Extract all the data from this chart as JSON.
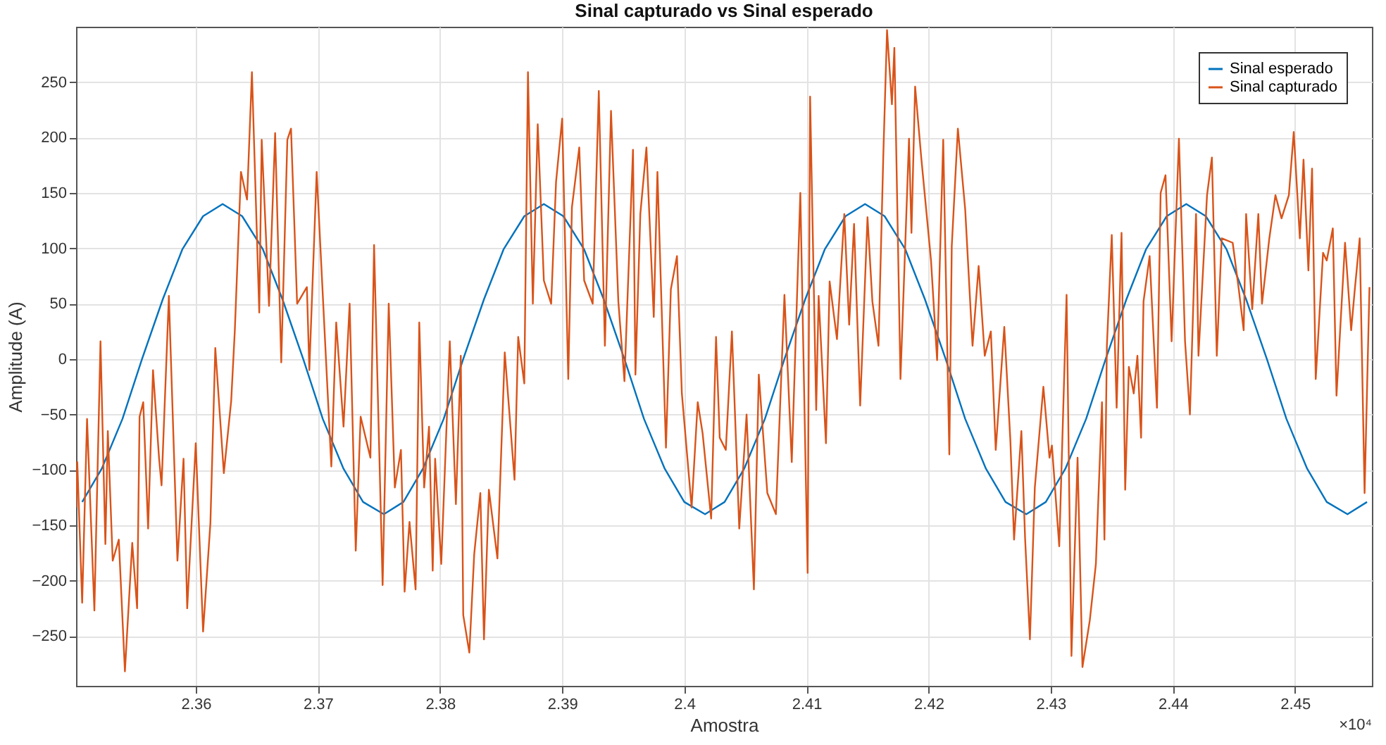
{
  "chart_data": {
    "type": "line",
    "title": "Sinal capturado vs Sinal esperado",
    "xlabel": "Amostra",
    "ylabel": "Amplitude (A)",
    "xlim": [
      2.3502,
      2.4563
    ],
    "ylim": [
      -295,
      300
    ],
    "xticks": [
      2.36,
      2.37,
      2.38,
      2.39,
      2.4,
      2.41,
      2.42,
      2.43,
      2.44,
      2.45
    ],
    "yticks": [
      -250,
      -200,
      -150,
      -100,
      -50,
      0,
      50,
      100,
      150,
      200,
      250
    ],
    "grid": true,
    "legend": "top right",
    "line_style": "solid",
    "marker": "none",
    "annotations": [
      "×10⁴"
    ],
    "series": [
      {
        "name": "Sinal esperado",
        "color": "#0072bd",
        "x": [
          2.3507,
          2.3523,
          2.354,
          2.3556,
          2.3573,
          2.3589,
          2.3606,
          2.3622,
          2.3638,
          2.3655,
          2.3671,
          2.3688,
          2.3704,
          2.3721,
          2.3737,
          2.3754,
          2.377,
          2.3786,
          2.3803,
          2.3819,
          2.3836,
          2.3852,
          2.3869,
          2.3885,
          2.3901,
          2.3918,
          2.3934,
          2.3951,
          2.3967,
          2.3984,
          2.4,
          2.4017,
          2.4033,
          2.4049,
          2.4066,
          2.4082,
          2.4099,
          2.4115,
          2.4132,
          2.4148,
          2.4164,
          2.4181,
          2.4197,
          2.4214,
          2.423,
          2.4247,
          2.4263,
          2.428,
          2.4296,
          2.4312,
          2.4329,
          2.4345,
          2.4362,
          2.4378,
          2.4395,
          2.4411,
          2.4427,
          2.4444,
          2.446,
          2.4477,
          2.4493,
          2.451,
          2.4526,
          2.4543,
          2.4559
        ],
        "values": [
          -129,
          -99,
          -54,
          0,
          54,
          99,
          129,
          140,
          129,
          99,
          54,
          0,
          -54,
          -99,
          -129,
          -140,
          -129,
          -99,
          -54,
          0,
          54,
          99,
          129,
          140,
          129,
          99,
          54,
          0,
          -54,
          -99,
          -129,
          -140,
          -129,
          -99,
          -54,
          0,
          54,
          99,
          129,
          140,
          129,
          99,
          54,
          0,
          -54,
          -99,
          -129,
          -140,
          -129,
          -99,
          -54,
          0,
          54,
          99,
          129,
          140,
          129,
          99,
          54,
          0,
          -54,
          -99,
          -129,
          -140,
          -129
        ]
      },
      {
        "name": "Sinal capturado",
        "color": "#d95319",
        "x": [
          2.3502,
          2.3503,
          2.3507,
          2.3511,
          2.3517,
          2.3522,
          2.3526,
          2.3528,
          2.3532,
          2.3537,
          2.3542,
          2.3548,
          2.3552,
          2.3554,
          2.3557,
          2.3561,
          2.3565,
          2.357,
          2.3572,
          2.3578,
          2.3585,
          2.359,
          2.3593,
          2.36,
          2.3606,
          2.3612,
          2.3616,
          2.3623,
          2.3629,
          2.3632,
          2.3637,
          2.3642,
          2.3646,
          2.3652,
          2.3654,
          2.366,
          2.3665,
          2.367,
          2.3675,
          2.3678,
          2.3683,
          2.3691,
          2.3693,
          2.3699,
          2.3711,
          2.3715,
          2.3721,
          2.3726,
          2.3731,
          2.3735,
          2.3743,
          2.3746,
          2.3753,
          2.3758,
          2.3763,
          2.3768,
          2.3771,
          2.3775,
          2.378,
          2.3783,
          2.3787,
          2.3791,
          2.3794,
          2.3796,
          2.3801,
          2.3808,
          2.3813,
          2.3817,
          2.3819,
          2.3824,
          2.3828,
          2.3833,
          2.3836,
          2.384,
          2.3847,
          2.3853,
          2.3861,
          2.3864,
          2.3869,
          2.3872,
          2.3876,
          2.388,
          2.3885,
          2.3891,
          2.3895,
          2.39,
          2.3905,
          2.3908,
          2.3914,
          2.3918,
          2.3925,
          2.393,
          2.3935,
          2.394,
          2.3946,
          2.3951,
          2.3958,
          2.396,
          2.3964,
          2.3969,
          2.3975,
          2.3978,
          2.3985,
          2.3989,
          2.3994,
          2.3998,
          2.4006,
          2.4011,
          2.4015,
          2.4022,
          2.4026,
          2.4029,
          2.4034,
          2.4039,
          2.4045,
          2.4051,
          2.4057,
          2.4061,
          2.4068,
          2.4075,
          2.4082,
          2.4088,
          2.4095,
          2.4101,
          2.4103,
          2.4108,
          2.411,
          2.4116,
          2.4119,
          2.4125,
          2.4131,
          2.4135,
          2.4139,
          2.4144,
          2.415,
          2.4154,
          2.4159,
          2.4163,
          2.4166,
          2.417,
          2.4172,
          2.4177,
          2.4184,
          2.4186,
          2.4189,
          2.4194,
          2.4202,
          2.4207,
          2.4212,
          2.4217,
          2.4219,
          2.4224,
          2.423,
          2.4236,
          2.4241,
          2.4246,
          2.4251,
          2.4255,
          2.4262,
          2.4267,
          2.427,
          2.4276,
          2.4279,
          2.4283,
          2.4287,
          2.4294,
          2.4299,
          2.4301,
          2.4307,
          2.4313,
          2.4317,
          2.4322,
          2.4326,
          2.4332,
          2.4337,
          2.4342,
          2.4344,
          2.4346,
          2.435,
          2.4354,
          2.4358,
          2.4361,
          2.4364,
          2.4368,
          2.4371,
          2.4374,
          2.4376,
          2.4381,
          2.4387,
          2.439,
          2.4394,
          2.4399,
          2.4405,
          2.441,
          2.4414,
          2.4419,
          2.4421,
          2.4428,
          2.4432,
          2.4436,
          2.444,
          2.4449,
          2.4454,
          2.4458,
          2.446,
          2.4465,
          2.447,
          2.4473,
          2.4479,
          2.4484,
          2.4489,
          2.4495,
          2.4499,
          2.4504,
          2.4507,
          2.4511,
          2.4514,
          2.4517,
          2.4523,
          2.4526,
          2.4531,
          2.4534,
          2.4541,
          2.4546,
          2.4549,
          2.4553,
          2.4557,
          2.4561
        ],
        "values": [
          -134,
          -93,
          -220,
          -54,
          -227,
          16,
          -167,
          -65,
          -182,
          -163,
          -282,
          -166,
          -225,
          -52,
          -39,
          -153,
          -10,
          -90,
          -114,
          57,
          -182,
          -90,
          -225,
          -76,
          -246,
          -148,
          10,
          -103,
          -38,
          26,
          169,
          144,
          259,
          42,
          198,
          48,
          204,
          -3,
          198,
          208,
          50,
          65,
          -10,
          169,
          -97,
          33,
          -61,
          50,
          -173,
          -52,
          -89,
          103,
          -204,
          50,
          -116,
          -82,
          -210,
          -147,
          -208,
          33,
          -116,
          -61,
          -191,
          -90,
          -185,
          16,
          -131,
          3,
          -231,
          -265,
          -176,
          -121,
          -253,
          -118,
          -180,
          6,
          -109,
          20,
          -22,
          259,
          50,
          212,
          71,
          50,
          160,
          217,
          -18,
          137,
          191,
          71,
          50,
          242,
          12,
          224,
          52,
          -20,
          189,
          -14,
          131,
          191,
          38,
          169,
          -80,
          63,
          93,
          -31,
          -134,
          -39,
          -67,
          -144,
          20,
          -71,
          -82,
          25,
          -153,
          -50,
          -208,
          -14,
          -121,
          -140,
          58,
          -93,
          150,
          -193,
          237,
          -46,
          57,
          -76,
          70,
          18,
          131,
          31,
          122,
          -42,
          128,
          52,
          12,
          186,
          297,
          230,
          281,
          -18,
          199,
          114,
          246,
          182,
          89,
          -1,
          198,
          -86,
          102,
          208,
          135,
          12,
          84,
          3,
          25,
          -82,
          29,
          -74,
          -163,
          -65,
          -161,
          -253,
          -116,
          -25,
          -89,
          -78,
          -169,
          58,
          -268,
          -89,
          -278,
          -236,
          -185,
          -39,
          -163,
          12,
          112,
          -44,
          114,
          -118,
          -7,
          -31,
          3,
          -71,
          52,
          93,
          -44,
          150,
          166,
          16,
          199,
          16,
          -50,
          131,
          3,
          148,
          182,
          3,
          109,
          105,
          63,
          26,
          131,
          45,
          131,
          50,
          109,
          148,
          127,
          148,
          205,
          109,
          180,
          80,
          172,
          -18,
          96,
          89,
          118,
          -33,
          105,
          26,
          63,
          109,
          -121,
          65
        ]
      }
    ]
  }
}
